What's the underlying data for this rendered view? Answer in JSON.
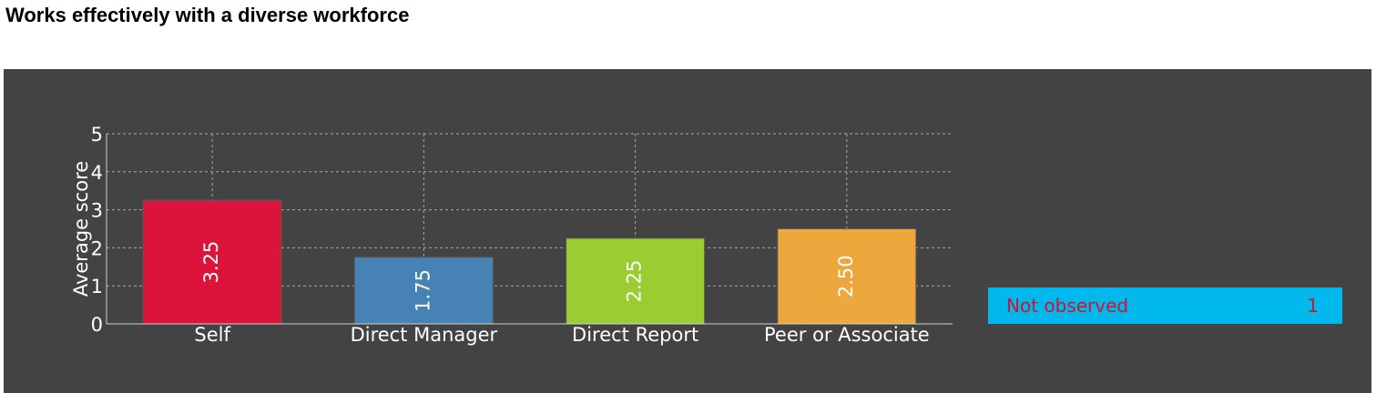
{
  "title": "Works effectively with a diverse workforce",
  "colors": {
    "panel_background": "#434343",
    "grid": "#a8a8a8",
    "axis_text": "#ffffff",
    "legend_background": "#00b8ec",
    "legend_text": "#d0132f"
  },
  "not_observed": {
    "label": "Not observed",
    "value": "1"
  },
  "chart_data": {
    "type": "bar",
    "title": "",
    "xlabel": "",
    "ylabel": "Average score",
    "ylim": [
      0,
      5
    ],
    "yticks": [
      0,
      1,
      2,
      3,
      4,
      5
    ],
    "grid": true,
    "categories": [
      "Self",
      "Direct Manager",
      "Direct Report",
      "Peer or Associate"
    ],
    "values": [
      3.25,
      1.75,
      2.25,
      2.5
    ],
    "data_labels": [
      "3.25",
      "1.75",
      "2.25",
      "2.50"
    ],
    "bar_colors": [
      "#dc143c",
      "#4682b4",
      "#9acd32",
      "#eca83c"
    ]
  }
}
